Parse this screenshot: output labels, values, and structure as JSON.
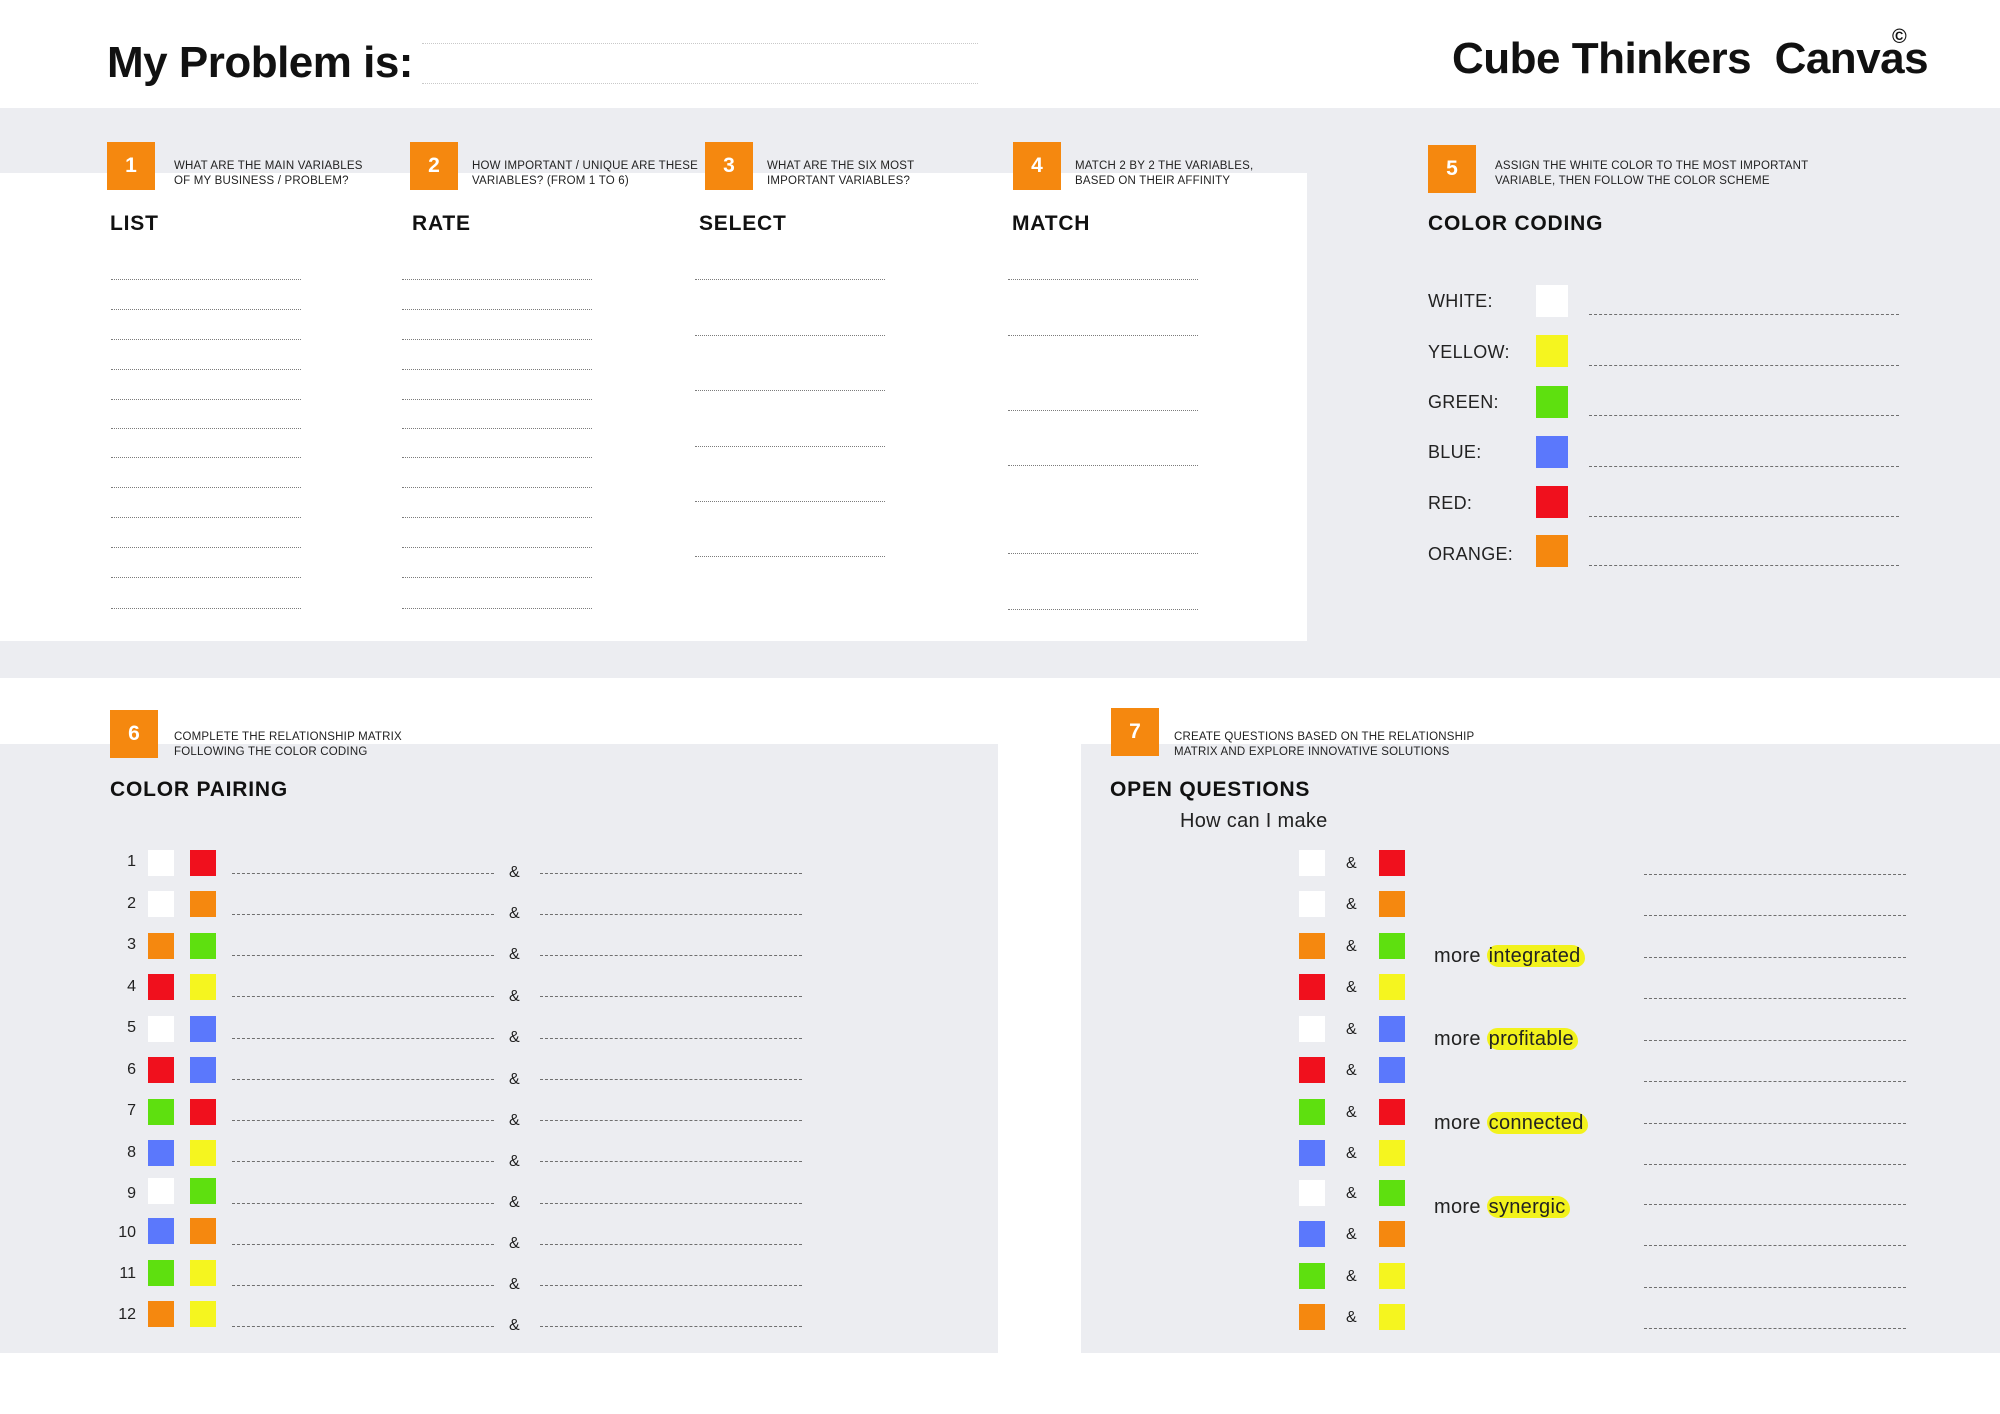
{
  "header": {
    "problem_label": "My Problem is:",
    "brand_title": "Cube Thinkers  Canvas",
    "copyright_symbol": "©"
  },
  "steps": [
    {
      "number": "1",
      "instruction": "WHAT ARE THE MAIN VARIABLES\nOF MY BUSINESS / PROBLEM?",
      "heading": "LIST"
    },
    {
      "number": "2",
      "instruction": "HOW IMPORTANT / UNIQUE ARE THESE\nVARIABLES? (FROM 1 TO 6)",
      "heading": "RATE"
    },
    {
      "number": "3",
      "instruction": "WHAT ARE THE SIX MOST\nIMPORTANT VARIABLES?",
      "heading": "SELECT"
    },
    {
      "number": "4",
      "instruction": "MATCH 2 BY 2 THE VARIABLES,\nBASED ON THEIR AFFINITY",
      "heading": "MATCH"
    },
    {
      "number": "5",
      "instruction": "ASSIGN THE WHITE COLOR TO THE MOST IMPORTANT\nVARIABLE, THEN FOLLOW THE COLOR SCHEME",
      "heading": "COLOR CODING"
    },
    {
      "number": "6",
      "instruction": "COMPLETE THE RELATIONSHIP MATRIX\nFOLLOWING THE COLOR CODING",
      "heading": "COLOR PAIRING"
    },
    {
      "number": "7",
      "instruction": "CREATE QUESTIONS BASED ON THE RELATIONSHIP\nMATRIX AND EXPLORE INNOVATIVE SOLUTIONS",
      "heading": "OPEN QUESTIONS"
    }
  ],
  "colors": {
    "white": "#ffffff",
    "yellow": "#f5f51f",
    "green": "#5ee00f",
    "blue": "#5b78fc",
    "red": "#f0101d",
    "orange": "#f5880f",
    "accent": "#f5880f",
    "panel": "#ecedf1"
  },
  "color_coding": [
    {
      "label": "WHITE:",
      "color": "white"
    },
    {
      "label": "YELLOW:",
      "color": "yellow"
    },
    {
      "label": "GREEN:",
      "color": "green"
    },
    {
      "label": "BLUE:",
      "color": "blue"
    },
    {
      "label": "RED:",
      "color": "red"
    },
    {
      "label": "ORANGE:",
      "color": "orange"
    }
  ],
  "pairings": [
    {
      "n": "1",
      "a": "white",
      "b": "red"
    },
    {
      "n": "2",
      "a": "white",
      "b": "orange"
    },
    {
      "n": "3",
      "a": "orange",
      "b": "green"
    },
    {
      "n": "4",
      "a": "red",
      "b": "yellow"
    },
    {
      "n": "5",
      "a": "white",
      "b": "blue"
    },
    {
      "n": "6",
      "a": "red",
      "b": "blue"
    },
    {
      "n": "7",
      "a": "green",
      "b": "red"
    },
    {
      "n": "8",
      "a": "blue",
      "b": "yellow"
    },
    {
      "n": "9",
      "a": "white",
      "b": "green"
    },
    {
      "n": "10",
      "a": "blue",
      "b": "orange"
    },
    {
      "n": "11",
      "a": "green",
      "b": "yellow"
    },
    {
      "n": "12",
      "a": "orange",
      "b": "yellow"
    }
  ],
  "ampersand": "&",
  "open_questions": {
    "prompt": "How can I make",
    "more_word": "more",
    "qualities": [
      "integrated",
      "profitable",
      "connected",
      "synergic"
    ]
  }
}
